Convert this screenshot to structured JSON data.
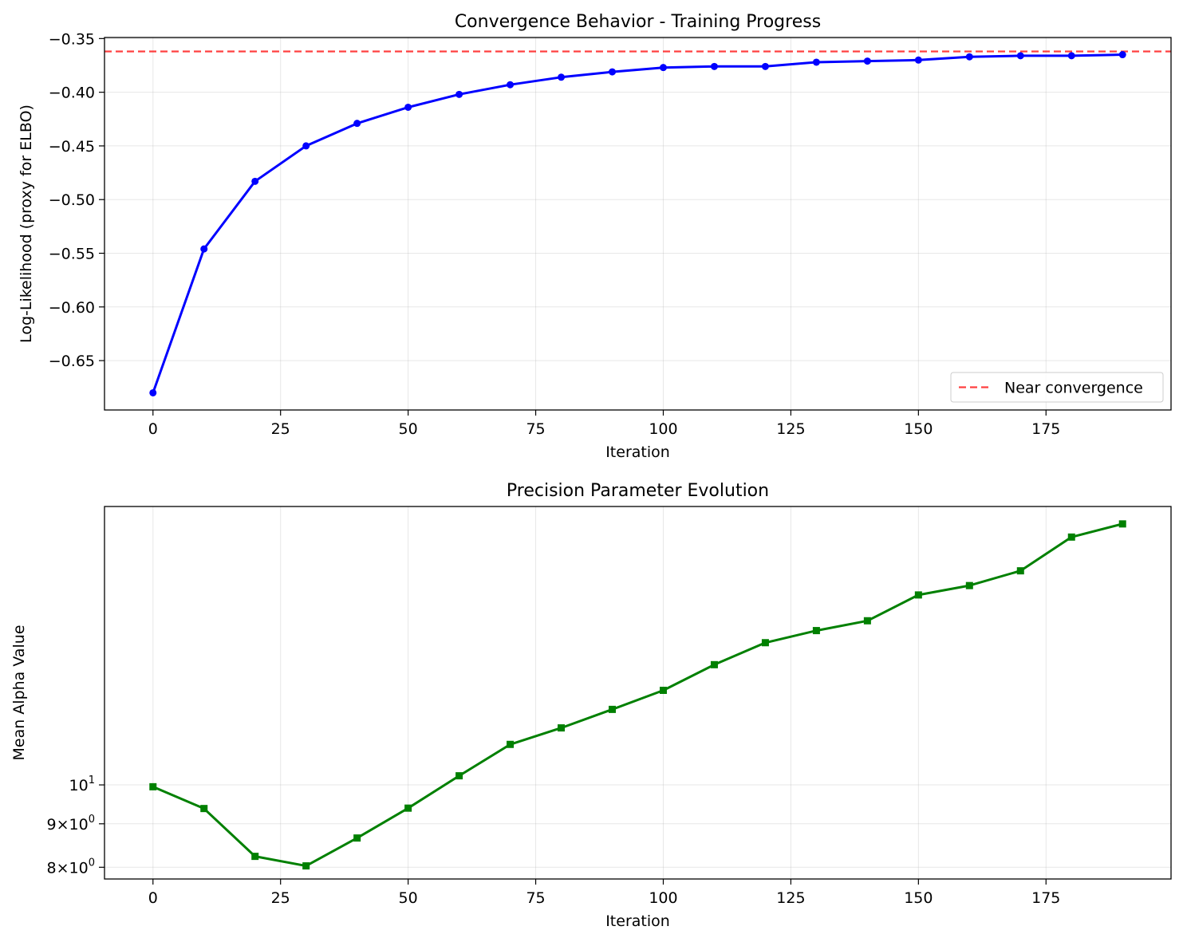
{
  "chart_data": [
    {
      "type": "line",
      "title": "Convergence Behavior - Training Progress",
      "xlabel": "Iteration",
      "ylabel": "Log-Likelihood (proxy for ELBO)",
      "x": [
        0,
        10,
        20,
        30,
        40,
        50,
        60,
        70,
        80,
        90,
        100,
        110,
        120,
        130,
        140,
        150,
        160,
        170,
        180,
        190
      ],
      "series": [
        {
          "name": "",
          "color": "#0000ff",
          "marker": "circle",
          "values": [
            -0.68,
            -0.546,
            -0.483,
            -0.45,
            -0.429,
            -0.414,
            -0.402,
            -0.393,
            -0.386,
            -0.381,
            -0.377,
            -0.376,
            -0.376,
            -0.372,
            -0.371,
            -0.37,
            -0.367,
            -0.366,
            -0.366,
            -0.365
          ]
        }
      ],
      "hline": {
        "label": "Near convergence",
        "value": -0.362,
        "color": "#ff0000",
        "style": "dashed"
      },
      "xlim": [
        -9.5,
        199.5
      ],
      "ylim": [
        -0.696,
        -0.349
      ],
      "xticks": [
        0,
        25,
        50,
        75,
        100,
        125,
        150,
        175
      ],
      "yticks": [
        -0.65,
        -0.6,
        -0.55,
        -0.5,
        -0.45,
        -0.4,
        -0.35
      ],
      "ytick_labels": [
        "−0.65",
        "−0.60",
        "−0.55",
        "−0.50",
        "−0.45",
        "−0.40",
        "−0.35"
      ],
      "grid": true,
      "legend": "lower right"
    },
    {
      "type": "line",
      "title": "Precision Parameter Evolution",
      "xlabel": "Iteration",
      "ylabel": "Mean Alpha Value",
      "yscale": "log",
      "x": [
        0,
        10,
        20,
        30,
        40,
        50,
        60,
        70,
        80,
        90,
        100,
        110,
        120,
        130,
        140,
        150,
        160,
        170,
        180,
        190
      ],
      "series": [
        {
          "name": "",
          "color": "#008000",
          "marker": "square",
          "values": [
            9.95,
            9.38,
            8.24,
            8.03,
            8.66,
            9.39,
            10.25,
            11.16,
            11.67,
            12.27,
            12.92,
            13.85,
            14.7,
            15.19,
            15.6,
            16.73,
            17.16,
            17.86,
            19.57,
            20.28
          ]
        }
      ],
      "xlim": [
        -9.5,
        199.5
      ],
      "ylim": [
        7.75,
        21.26
      ],
      "xticks": [
        0,
        25,
        50,
        75,
        100,
        125,
        150,
        175
      ],
      "yticks": [
        8,
        9,
        10
      ],
      "ytick_labels": [
        {
          "base": "8×10",
          "exp": "0"
        },
        {
          "base": "9×10",
          "exp": "0"
        },
        {
          "base": "10",
          "exp": "1"
        }
      ],
      "grid": true
    }
  ]
}
